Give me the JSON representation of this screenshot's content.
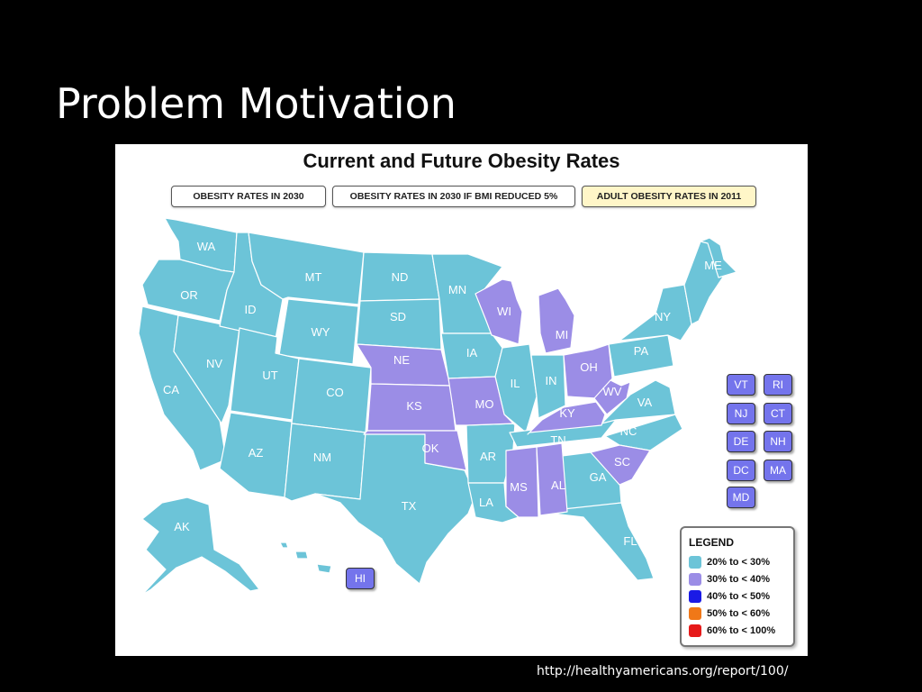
{
  "slide": {
    "title": "Problem Motivation",
    "source": "http://healthyamericans.org/report/100/"
  },
  "map": {
    "title": "Current and Future Obesity Rates",
    "tabs": [
      {
        "label": "OBESITY RATES IN 2030",
        "active": false
      },
      {
        "label": "OBESITY RATES IN 2030 IF BMI REDUCED 5%",
        "active": false
      },
      {
        "label": "ADULT OBESITY RATES IN 2011",
        "active": true
      }
    ],
    "colors": {
      "teal": "#6cc4d8",
      "purple": "#9b8de6",
      "blue": "#1a1ae6",
      "orange": "#f07818",
      "red": "#e61a1a"
    },
    "states_30_40": [
      "WI",
      "MI",
      "OH",
      "NE",
      "KS",
      "MO",
      "OK",
      "KY",
      "WV",
      "MS",
      "AL",
      "SC",
      "DE",
      "DC",
      "MD",
      "HI"
    ],
    "state_labels": [
      "WA",
      "OR",
      "CA",
      "NV",
      "ID",
      "MT",
      "WY",
      "UT",
      "AZ",
      "CO",
      "NM",
      "ND",
      "SD",
      "NE",
      "KS",
      "OK",
      "TX",
      "MN",
      "IA",
      "MO",
      "AR",
      "LA",
      "WI",
      "IL",
      "MI",
      "IN",
      "OH",
      "KY",
      "TN",
      "MS",
      "AL",
      "GA",
      "FL",
      "SC",
      "NC",
      "VA",
      "WV",
      "PA",
      "NY",
      "ME",
      "AK"
    ],
    "small_states": [
      "VT",
      "RI",
      "NJ",
      "CT",
      "DE",
      "NH",
      "DC",
      "MA",
      "MD"
    ],
    "hi_label": "HI",
    "legend": {
      "title": "LEGEND",
      "items": [
        {
          "label": "20% to < 30%",
          "color": "#6cc4d8"
        },
        {
          "label": "30% to < 40%",
          "color": "#9b8de6"
        },
        {
          "label": "40% to < 50%",
          "color": "#1a1ae6"
        },
        {
          "label": "50% to < 60%",
          "color": "#f07818"
        },
        {
          "label": "60% to < 100%",
          "color": "#e61a1a"
        }
      ]
    }
  }
}
